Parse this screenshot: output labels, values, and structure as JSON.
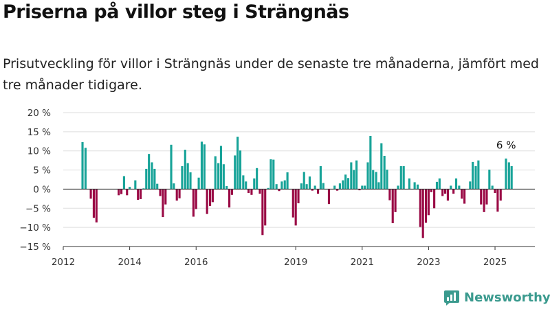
{
  "header": {
    "title": "Priserna på villor steg i Strängnäs",
    "subtitle": "Prisutveckling för villor i Strängnäs under de senaste tre månaderna, jämfört med tre månader tidigare."
  },
  "brand": {
    "name": "Newsworthy",
    "icon": "newsworthy-logo-icon"
  },
  "colors": {
    "positive": "#17a398",
    "negative": "#9a0a45",
    "grid": "#dddddd",
    "zero_line": "#333333"
  },
  "chart_data": {
    "type": "bar",
    "title": "Priserna på villor steg i Strängnäs",
    "ylabel": "",
    "xlabel": "",
    "ylim": [
      -15,
      20
    ],
    "y_ticks": [
      20,
      15,
      10,
      5,
      0,
      -5,
      -10,
      -15
    ],
    "y_tick_labels": [
      "20 %",
      "15 %",
      "10 %",
      "5 %",
      "0 %",
      "−5 %",
      "−10 %",
      "−15 %"
    ],
    "x_ticks": [
      2012,
      2014,
      2016,
      2019,
      2021,
      2023,
      2025
    ],
    "x_tick_labels": [
      "2012",
      "2014",
      "2016",
      "2019",
      "2021",
      "2023",
      "2025"
    ],
    "x_range": [
      2012.0,
      2026.2
    ],
    "grid": true,
    "legend": "none",
    "annotation": {
      "x": 2025.5,
      "text": "6 %"
    },
    "x": [
      2012.58,
      2012.67,
      2012.75,
      2012.83,
      2012.92,
      2013.0,
      2013.08,
      2013.17,
      2013.25,
      2013.33,
      2013.42,
      2013.5,
      2013.58,
      2013.67,
      2013.75,
      2013.83,
      2013.92,
      2014.0,
      2014.08,
      2014.17,
      2014.25,
      2014.33,
      2014.42,
      2014.5,
      2014.58,
      2014.67,
      2014.75,
      2014.83,
      2014.92,
      2015.0,
      2015.08,
      2015.17,
      2015.25,
      2015.33,
      2015.42,
      2015.5,
      2015.58,
      2015.67,
      2015.75,
      2015.83,
      2015.92,
      2016.0,
      2016.08,
      2016.17,
      2016.25,
      2016.33,
      2016.42,
      2016.5,
      2016.58,
      2016.67,
      2016.75,
      2016.83,
      2016.92,
      2017.0,
      2017.08,
      2017.17,
      2017.25,
      2017.33,
      2017.42,
      2017.5,
      2017.58,
      2017.67,
      2017.75,
      2017.83,
      2017.92,
      2018.0,
      2018.08,
      2018.17,
      2018.25,
      2018.33,
      2018.42,
      2018.5,
      2018.58,
      2018.67,
      2018.75,
      2018.83,
      2018.92,
      2019.0,
      2019.08,
      2019.17,
      2019.25,
      2019.33,
      2019.42,
      2019.5,
      2019.58,
      2019.67,
      2019.75,
      2019.83,
      2019.92,
      2020.0,
      2020.08,
      2020.17,
      2020.25,
      2020.33,
      2020.42,
      2020.5,
      2020.58,
      2020.67,
      2020.75,
      2020.83,
      2020.92,
      2021.0,
      2021.08,
      2021.17,
      2021.25,
      2021.33,
      2021.42,
      2021.5,
      2021.58,
      2021.67,
      2021.75,
      2021.83,
      2021.92,
      2022.0,
      2022.08,
      2022.17,
      2022.25,
      2022.33,
      2022.42,
      2022.5,
      2022.58,
      2022.67,
      2022.75,
      2022.83,
      2022.92,
      2023.0,
      2023.08,
      2023.17,
      2023.25,
      2023.33,
      2023.42,
      2023.5,
      2023.58,
      2023.67,
      2023.75,
      2023.83,
      2023.92,
      2024.0,
      2024.08,
      2024.17,
      2024.25,
      2024.33,
      2024.42,
      2024.5,
      2024.58,
      2024.67,
      2024.75,
      2024.83,
      2024.92,
      2025.0,
      2025.08,
      2025.17,
      2025.25,
      2025.33,
      2025.42,
      2025.5
    ],
    "values": [
      12.3,
      10.8,
      0,
      -2.5,
      -7.5,
      -8.7,
      0,
      0,
      0,
      0,
      0,
      0,
      0,
      -1.6,
      -1.3,
      3.4,
      -1.6,
      0.6,
      0,
      2.3,
      -2.8,
      -2.6,
      0.2,
      5.3,
      9.2,
      7.0,
      5.3,
      1.4,
      -1.8,
      -7.3,
      -4.0,
      0,
      11.6,
      1.5,
      -3.0,
      -2.4,
      6.0,
      10.3,
      6.8,
      4.4,
      -7.2,
      -5.2,
      3.0,
      12.4,
      11.7,
      -6.5,
      -4.4,
      -3.4,
      8.6,
      6.8,
      11.3,
      6.5,
      0.8,
      -4.8,
      -1.5,
      8.8,
      13.7,
      10.1,
      3.6,
      2.0,
      -1.0,
      -1.5,
      2.8,
      5.5,
      -1.2,
      -12.0,
      -9.5,
      0.3,
      7.8,
      7.7,
      1.3,
      -0.5,
      2.0,
      2.3,
      4.4,
      0,
      -7.4,
      -9.5,
      -3.7,
      1.5,
      4.5,
      1.3,
      3.3,
      -0.4,
      0.9,
      -1.2,
      6.0,
      1.6,
      0,
      -3.9,
      0,
      0.9,
      -0.4,
      1.5,
      2.3,
      3.8,
      2.9,
      7.0,
      5.0,
      7.5,
      -0.3,
      0.9,
      0.9,
      7.0,
      13.9,
      5.0,
      4.5,
      1.8,
      12.0,
      8.7,
      5.1,
      -2.9,
      -8.9,
      -6.0,
      0.9,
      6.0,
      6.0,
      0,
      2.8,
      0,
      1.8,
      1.2,
      -9.9,
      -12.8,
      -8.8,
      -6.8,
      -0.8,
      -5.0,
      1.9,
      2.8,
      -1.8,
      -1.2,
      -3.0,
      0.9,
      -1.2,
      2.8,
      0.9,
      -2.5,
      -3.8,
      0,
      2.0,
      7.1,
      6.0,
      7.5,
      -4.0,
      -6.0,
      -4.0,
      5.1,
      0.9,
      -1.0,
      -5.9,
      -3.0,
      0,
      8.0,
      7.0,
      6.0
    ]
  }
}
